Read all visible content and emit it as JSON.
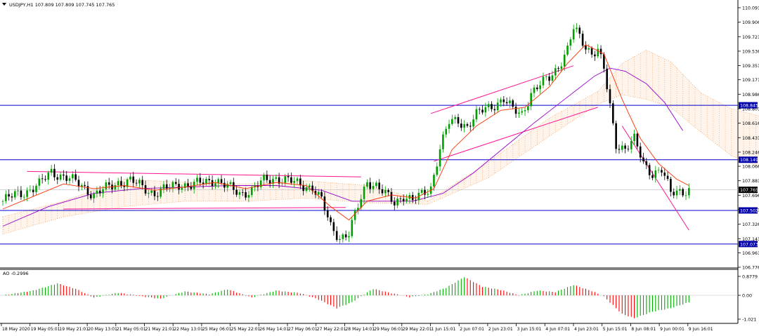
{
  "window": {
    "symbol_header": "USDJPY,H1  107.809 107.809 107.745 107.765",
    "dropdown_icon": "triangle-down-icon"
  },
  "oscillator": {
    "label": "AO -0.2996"
  },
  "colors": {
    "background": "#ffffff",
    "axis": "#000000",
    "bull_body": "#00a000",
    "bear_body": "#000000",
    "fast_ma": "#ff3000",
    "slow_ma": "#9900cc",
    "ichimoku_cloud": "#f4a460",
    "trend_line": "#ff1493",
    "hline": "#0000cc",
    "label_bg": "#0000aa",
    "price_label_bg": "#000000",
    "ao_up": "#00aa00",
    "ao_down": "#ff0000",
    "ao_zero": "#c0c0c0"
  },
  "chart_data": [
    {
      "type": "candlestick",
      "title": "USDJPY,H1",
      "ohlc_last": {
        "open": 107.809,
        "high": 107.809,
        "low": 107.745,
        "close": 107.765
      },
      "y_ticks": [
        110.091,
        109.906,
        109.721,
        109.536,
        109.351,
        109.171,
        108.986,
        108.801,
        108.616,
        108.431,
        108.246,
        108.066,
        107.881,
        107.696,
        107.511,
        107.326,
        107.141,
        106.961,
        106.776
      ],
      "ylim": [
        106.776,
        110.091
      ],
      "x_ticks": [
        "18 May 2020",
        "19 May 05:01",
        "19 May 21:01",
        "20 May 13:01",
        "21 May 05:01",
        "21 May 21:01",
        "22 May 13:01",
        "25 May 06:01",
        "25 May 22:01",
        "26 May 14:01",
        "27 May 06:01",
        "27 May 22:01",
        "28 May 14:01",
        "29 May 06:01",
        "29 May 22:01",
        "1 Jun 15:01",
        "2 Jun 07:01",
        "2 Jun 23:01",
        "3 Jun 15:01",
        "4 Jun 07:01",
        "4 Jun 23:01",
        "5 Jun 15:01",
        "8 Jun 08:01",
        "9 Jun 00:01",
        "9 Jun 16:01"
      ],
      "close_path": [
        {
          "t": 0,
          "c": 107.62
        },
        {
          "t": 4,
          "c": 107.7
        },
        {
          "t": 8,
          "c": 107.75
        },
        {
          "t": 12,
          "c": 107.83
        },
        {
          "t": 16,
          "c": 108.0
        },
        {
          "t": 19,
          "c": 107.95
        },
        {
          "t": 22,
          "c": 107.9
        },
        {
          "t": 26,
          "c": 107.82
        },
        {
          "t": 30,
          "c": 107.7
        },
        {
          "t": 34,
          "c": 107.78
        },
        {
          "t": 38,
          "c": 107.86
        },
        {
          "t": 42,
          "c": 107.88
        },
        {
          "t": 46,
          "c": 107.8
        },
        {
          "t": 50,
          "c": 107.72
        },
        {
          "t": 54,
          "c": 107.78
        },
        {
          "t": 58,
          "c": 107.84
        },
        {
          "t": 62,
          "c": 107.82
        },
        {
          "t": 66,
          "c": 107.86
        },
        {
          "t": 70,
          "c": 107.9
        },
        {
          "t": 74,
          "c": 107.8
        },
        {
          "t": 78,
          "c": 107.72
        },
        {
          "t": 82,
          "c": 107.76
        },
        {
          "t": 86,
          "c": 107.88
        },
        {
          "t": 90,
          "c": 107.92
        },
        {
          "t": 94,
          "c": 107.88
        },
        {
          "t": 98,
          "c": 107.83
        },
        {
          "t": 102,
          "c": 107.8
        },
        {
          "t": 105,
          "c": 107.62
        },
        {
          "t": 108,
          "c": 107.3
        },
        {
          "t": 111,
          "c": 107.16
        },
        {
          "t": 114,
          "c": 107.2
        },
        {
          "t": 117,
          "c": 107.55
        },
        {
          "t": 120,
          "c": 107.88
        },
        {
          "t": 123,
          "c": 107.82
        },
        {
          "t": 126,
          "c": 107.7
        },
        {
          "t": 129,
          "c": 107.6
        },
        {
          "t": 132,
          "c": 107.7
        },
        {
          "t": 135,
          "c": 107.62
        },
        {
          "t": 138,
          "c": 107.7
        },
        {
          "t": 141,
          "c": 107.8
        },
        {
          "t": 144,
          "c": 108.3
        },
        {
          "t": 147,
          "c": 108.62
        },
        {
          "t": 150,
          "c": 108.65
        },
        {
          "t": 153,
          "c": 108.58
        },
        {
          "t": 156,
          "c": 108.72
        },
        {
          "t": 159,
          "c": 108.8
        },
        {
          "t": 162,
          "c": 108.86
        },
        {
          "t": 165,
          "c": 108.92
        },
        {
          "t": 168,
          "c": 108.78
        },
        {
          "t": 171,
          "c": 108.74
        },
        {
          "t": 174,
          "c": 109.0
        },
        {
          "t": 177,
          "c": 109.1
        },
        {
          "t": 180,
          "c": 109.2
        },
        {
          "t": 183,
          "c": 109.35
        },
        {
          "t": 186,
          "c": 109.55
        },
        {
          "t": 188,
          "c": 109.82
        },
        {
          "t": 190,
          "c": 109.72
        },
        {
          "t": 192,
          "c": 109.6
        },
        {
          "t": 194,
          "c": 109.52
        },
        {
          "t": 196,
          "c": 109.55
        },
        {
          "t": 198,
          "c": 109.3
        },
        {
          "t": 200,
          "c": 108.82
        },
        {
          "t": 202,
          "c": 108.35
        },
        {
          "t": 205,
          "c": 108.3
        },
        {
          "t": 208,
          "c": 108.4
        },
        {
          "t": 211,
          "c": 108.1
        },
        {
          "t": 214,
          "c": 107.98
        },
        {
          "t": 217,
          "c": 108.02
        },
        {
          "t": 220,
          "c": 107.72
        },
        {
          "t": 223,
          "c": 107.76
        },
        {
          "t": 226,
          "c": 107.76
        }
      ],
      "fast_ma_path": [
        {
          "t": 0,
          "c": 107.52
        },
        {
          "t": 10,
          "c": 107.68
        },
        {
          "t": 20,
          "c": 107.84
        },
        {
          "t": 30,
          "c": 107.78
        },
        {
          "t": 40,
          "c": 107.82
        },
        {
          "t": 50,
          "c": 107.76
        },
        {
          "t": 60,
          "c": 107.8
        },
        {
          "t": 70,
          "c": 107.86
        },
        {
          "t": 80,
          "c": 107.78
        },
        {
          "t": 90,
          "c": 107.86
        },
        {
          "t": 100,
          "c": 107.82
        },
        {
          "t": 108,
          "c": 107.55
        },
        {
          "t": 114,
          "c": 107.38
        },
        {
          "t": 120,
          "c": 107.62
        },
        {
          "t": 128,
          "c": 107.7
        },
        {
          "t": 136,
          "c": 107.66
        },
        {
          "t": 142,
          "c": 107.78
        },
        {
          "t": 148,
          "c": 108.28
        },
        {
          "t": 156,
          "c": 108.58
        },
        {
          "t": 164,
          "c": 108.78
        },
        {
          "t": 172,
          "c": 108.82
        },
        {
          "t": 180,
          "c": 109.08
        },
        {
          "t": 186,
          "c": 109.38
        },
        {
          "t": 192,
          "c": 109.62
        },
        {
          "t": 198,
          "c": 109.5
        },
        {
          "t": 204,
          "c": 108.92
        },
        {
          "t": 210,
          "c": 108.42
        },
        {
          "t": 216,
          "c": 108.1
        },
        {
          "t": 222,
          "c": 107.9
        },
        {
          "t": 226,
          "c": 107.82
        }
      ],
      "slow_ma_path": [
        {
          "t": 0,
          "c": 107.3
        },
        {
          "t": 15,
          "c": 107.55
        },
        {
          "t": 30,
          "c": 107.72
        },
        {
          "t": 45,
          "c": 107.78
        },
        {
          "t": 60,
          "c": 107.8
        },
        {
          "t": 75,
          "c": 107.82
        },
        {
          "t": 90,
          "c": 107.82
        },
        {
          "t": 105,
          "c": 107.76
        },
        {
          "t": 115,
          "c": 107.62
        },
        {
          "t": 125,
          "c": 107.62
        },
        {
          "t": 135,
          "c": 107.62
        },
        {
          "t": 145,
          "c": 107.72
        },
        {
          "t": 155,
          "c": 107.98
        },
        {
          "t": 165,
          "c": 108.3
        },
        {
          "t": 175,
          "c": 108.62
        },
        {
          "t": 185,
          "c": 108.92
        },
        {
          "t": 195,
          "c": 109.22
        },
        {
          "t": 200,
          "c": 109.32
        },
        {
          "t": 205,
          "c": 109.28
        },
        {
          "t": 212,
          "c": 109.12
        },
        {
          "t": 218,
          "c": 108.88
        },
        {
          "t": 224,
          "c": 108.52
        }
      ],
      "cloud_upper": [
        {
          "t": 0,
          "c": 107.42
        },
        {
          "t": 20,
          "c": 107.62
        },
        {
          "t": 40,
          "c": 107.9
        },
        {
          "t": 60,
          "c": 107.86
        },
        {
          "t": 80,
          "c": 107.84
        },
        {
          "t": 100,
          "c": 107.88
        },
        {
          "t": 120,
          "c": 107.82
        },
        {
          "t": 140,
          "c": 107.62
        },
        {
          "t": 160,
          "c": 108.12
        },
        {
          "t": 180,
          "c": 108.68
        },
        {
          "t": 196,
          "c": 109.02
        },
        {
          "t": 204,
          "c": 109.38
        },
        {
          "t": 212,
          "c": 109.55
        },
        {
          "t": 220,
          "c": 109.4
        },
        {
          "t": 230,
          "c": 109.0
        },
        {
          "t": 240,
          "c": 108.8
        },
        {
          "t": 250,
          "c": 108.7
        }
      ],
      "cloud_lower": [
        {
          "t": 0,
          "c": 107.2
        },
        {
          "t": 20,
          "c": 107.42
        },
        {
          "t": 40,
          "c": 107.55
        },
        {
          "t": 60,
          "c": 107.62
        },
        {
          "t": 80,
          "c": 107.62
        },
        {
          "t": 100,
          "c": 107.66
        },
        {
          "t": 120,
          "c": 107.6
        },
        {
          "t": 140,
          "c": 107.58
        },
        {
          "t": 160,
          "c": 107.92
        },
        {
          "t": 180,
          "c": 108.45
        },
        {
          "t": 196,
          "c": 108.86
        },
        {
          "t": 204,
          "c": 108.98
        },
        {
          "t": 212,
          "c": 108.92
        },
        {
          "t": 220,
          "c": 108.82
        },
        {
          "t": 230,
          "c": 108.5
        },
        {
          "t": 240,
          "c": 108.2
        },
        {
          "t": 250,
          "c": 108.05
        }
      ],
      "trend_lines": [
        {
          "p1": {
            "t": 8,
            "c": 108.0
          },
          "p2": {
            "t": 118,
            "c": 107.93
          }
        },
        {
          "p1": {
            "t": 20,
            "c": 107.52
          },
          "p2": {
            "t": 113,
            "c": 107.54
          }
        },
        {
          "p1": {
            "t": 141,
            "c": 108.74
          },
          "p2": {
            "t": 188,
            "c": 109.35
          }
        },
        {
          "p1": {
            "t": 142,
            "c": 108.13
          },
          "p2": {
            "t": 196,
            "c": 108.82
          }
        },
        {
          "p1": {
            "t": 204,
            "c": 108.58
          },
          "p2": {
            "t": 226,
            "c": 107.25
          }
        }
      ],
      "horizontal_levels": [
        {
          "value": 108.845,
          "label": "108.845"
        },
        {
          "value": 108.149,
          "label": "108.149"
        },
        {
          "value": 107.502,
          "label": "107.502"
        },
        {
          "value": 107.073,
          "label": "107.073"
        }
      ],
      "current_price": {
        "value": 107.765,
        "label": "107.765"
      }
    },
    {
      "type": "bar",
      "title": "AO -0.2996",
      "y_ticks": [
        0.8779,
        0.0,
        -1.021
      ],
      "ylim": [
        -1.021,
        0.8779
      ],
      "ao_path": [
        {
          "t": 0,
          "v": 0.0
        },
        {
          "t": 10,
          "v": 0.22
        },
        {
          "t": 18,
          "v": 0.55
        },
        {
          "t": 24,
          "v": 0.3
        },
        {
          "t": 30,
          "v": -0.1
        },
        {
          "t": 38,
          "v": 0.12
        },
        {
          "t": 46,
          "v": -0.05
        },
        {
          "t": 52,
          "v": -0.15
        },
        {
          "t": 60,
          "v": 0.18
        },
        {
          "t": 68,
          "v": 0.05
        },
        {
          "t": 74,
          "v": 0.28
        },
        {
          "t": 82,
          "v": -0.1
        },
        {
          "t": 90,
          "v": 0.22
        },
        {
          "t": 98,
          "v": 0.1
        },
        {
          "t": 104,
          "v": -0.18
        },
        {
          "t": 110,
          "v": -0.55
        },
        {
          "t": 115,
          "v": -0.3
        },
        {
          "t": 122,
          "v": 0.3
        },
        {
          "t": 128,
          "v": 0.1
        },
        {
          "t": 134,
          "v": -0.08
        },
        {
          "t": 140,
          "v": 0.05
        },
        {
          "t": 146,
          "v": 0.35
        },
        {
          "t": 152,
          "v": 0.85
        },
        {
          "t": 158,
          "v": 0.4
        },
        {
          "t": 164,
          "v": 0.25
        },
        {
          "t": 170,
          "v": 0.0
        },
        {
          "t": 176,
          "v": 0.22
        },
        {
          "t": 182,
          "v": 0.15
        },
        {
          "t": 188,
          "v": 0.48
        },
        {
          "t": 194,
          "v": 0.2
        },
        {
          "t": 198,
          "v": -0.05
        },
        {
          "t": 204,
          "v": -0.8
        },
        {
          "t": 208,
          "v": -0.98
        },
        {
          "t": 214,
          "v": -0.7
        },
        {
          "t": 220,
          "v": -0.55
        },
        {
          "t": 226,
          "v": -0.3
        }
      ]
    }
  ]
}
